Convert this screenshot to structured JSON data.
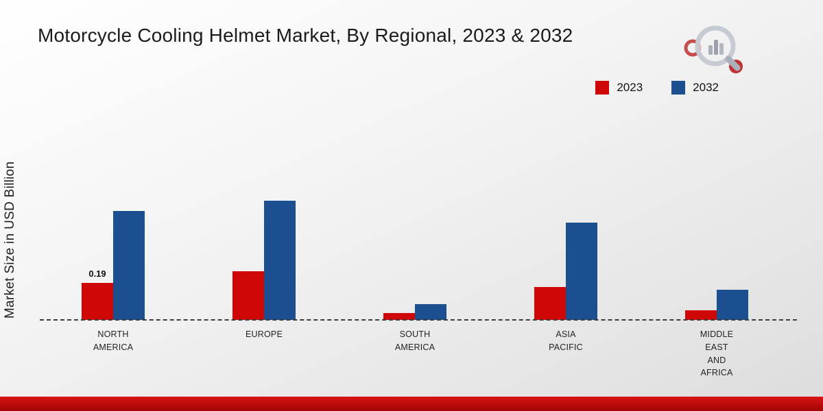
{
  "title": "Motorcycle Cooling Helmet Market, By Regional, 2023 & 2032",
  "colors": {
    "series_2023": "#d00707",
    "series_2032": "#1b4f8f",
    "footer_bar": "#c00000"
  },
  "chart_data": {
    "type": "bar",
    "title": "Motorcycle Cooling Helmet Market, By Regional, 2023 & 2032",
    "ylabel": "Market Size in USD Billion",
    "xlabel": "",
    "categories": [
      "NORTH\nAMERICA",
      "EUROPE",
      "SOUTH\nAMERICA",
      "ASIA\nPACIFIC",
      "MIDDLE\nEAST\nAND\nAFRICA"
    ],
    "series": [
      {
        "name": "2023",
        "color": "#d00707",
        "values": [
          0.19,
          0.25,
          0.035,
          0.17,
          0.05
        ]
      },
      {
        "name": "2032",
        "color": "#1b4f8f",
        "values": [
          0.56,
          0.61,
          0.08,
          0.5,
          0.155
        ]
      }
    ],
    "annotations": [
      {
        "series_index": 0,
        "category_index": 0,
        "text": "0.19"
      }
    ],
    "ylim": [
      0,
      0.65
    ],
    "grid": false,
    "baseline_style": "dashed",
    "legend_position": "top-right"
  }
}
